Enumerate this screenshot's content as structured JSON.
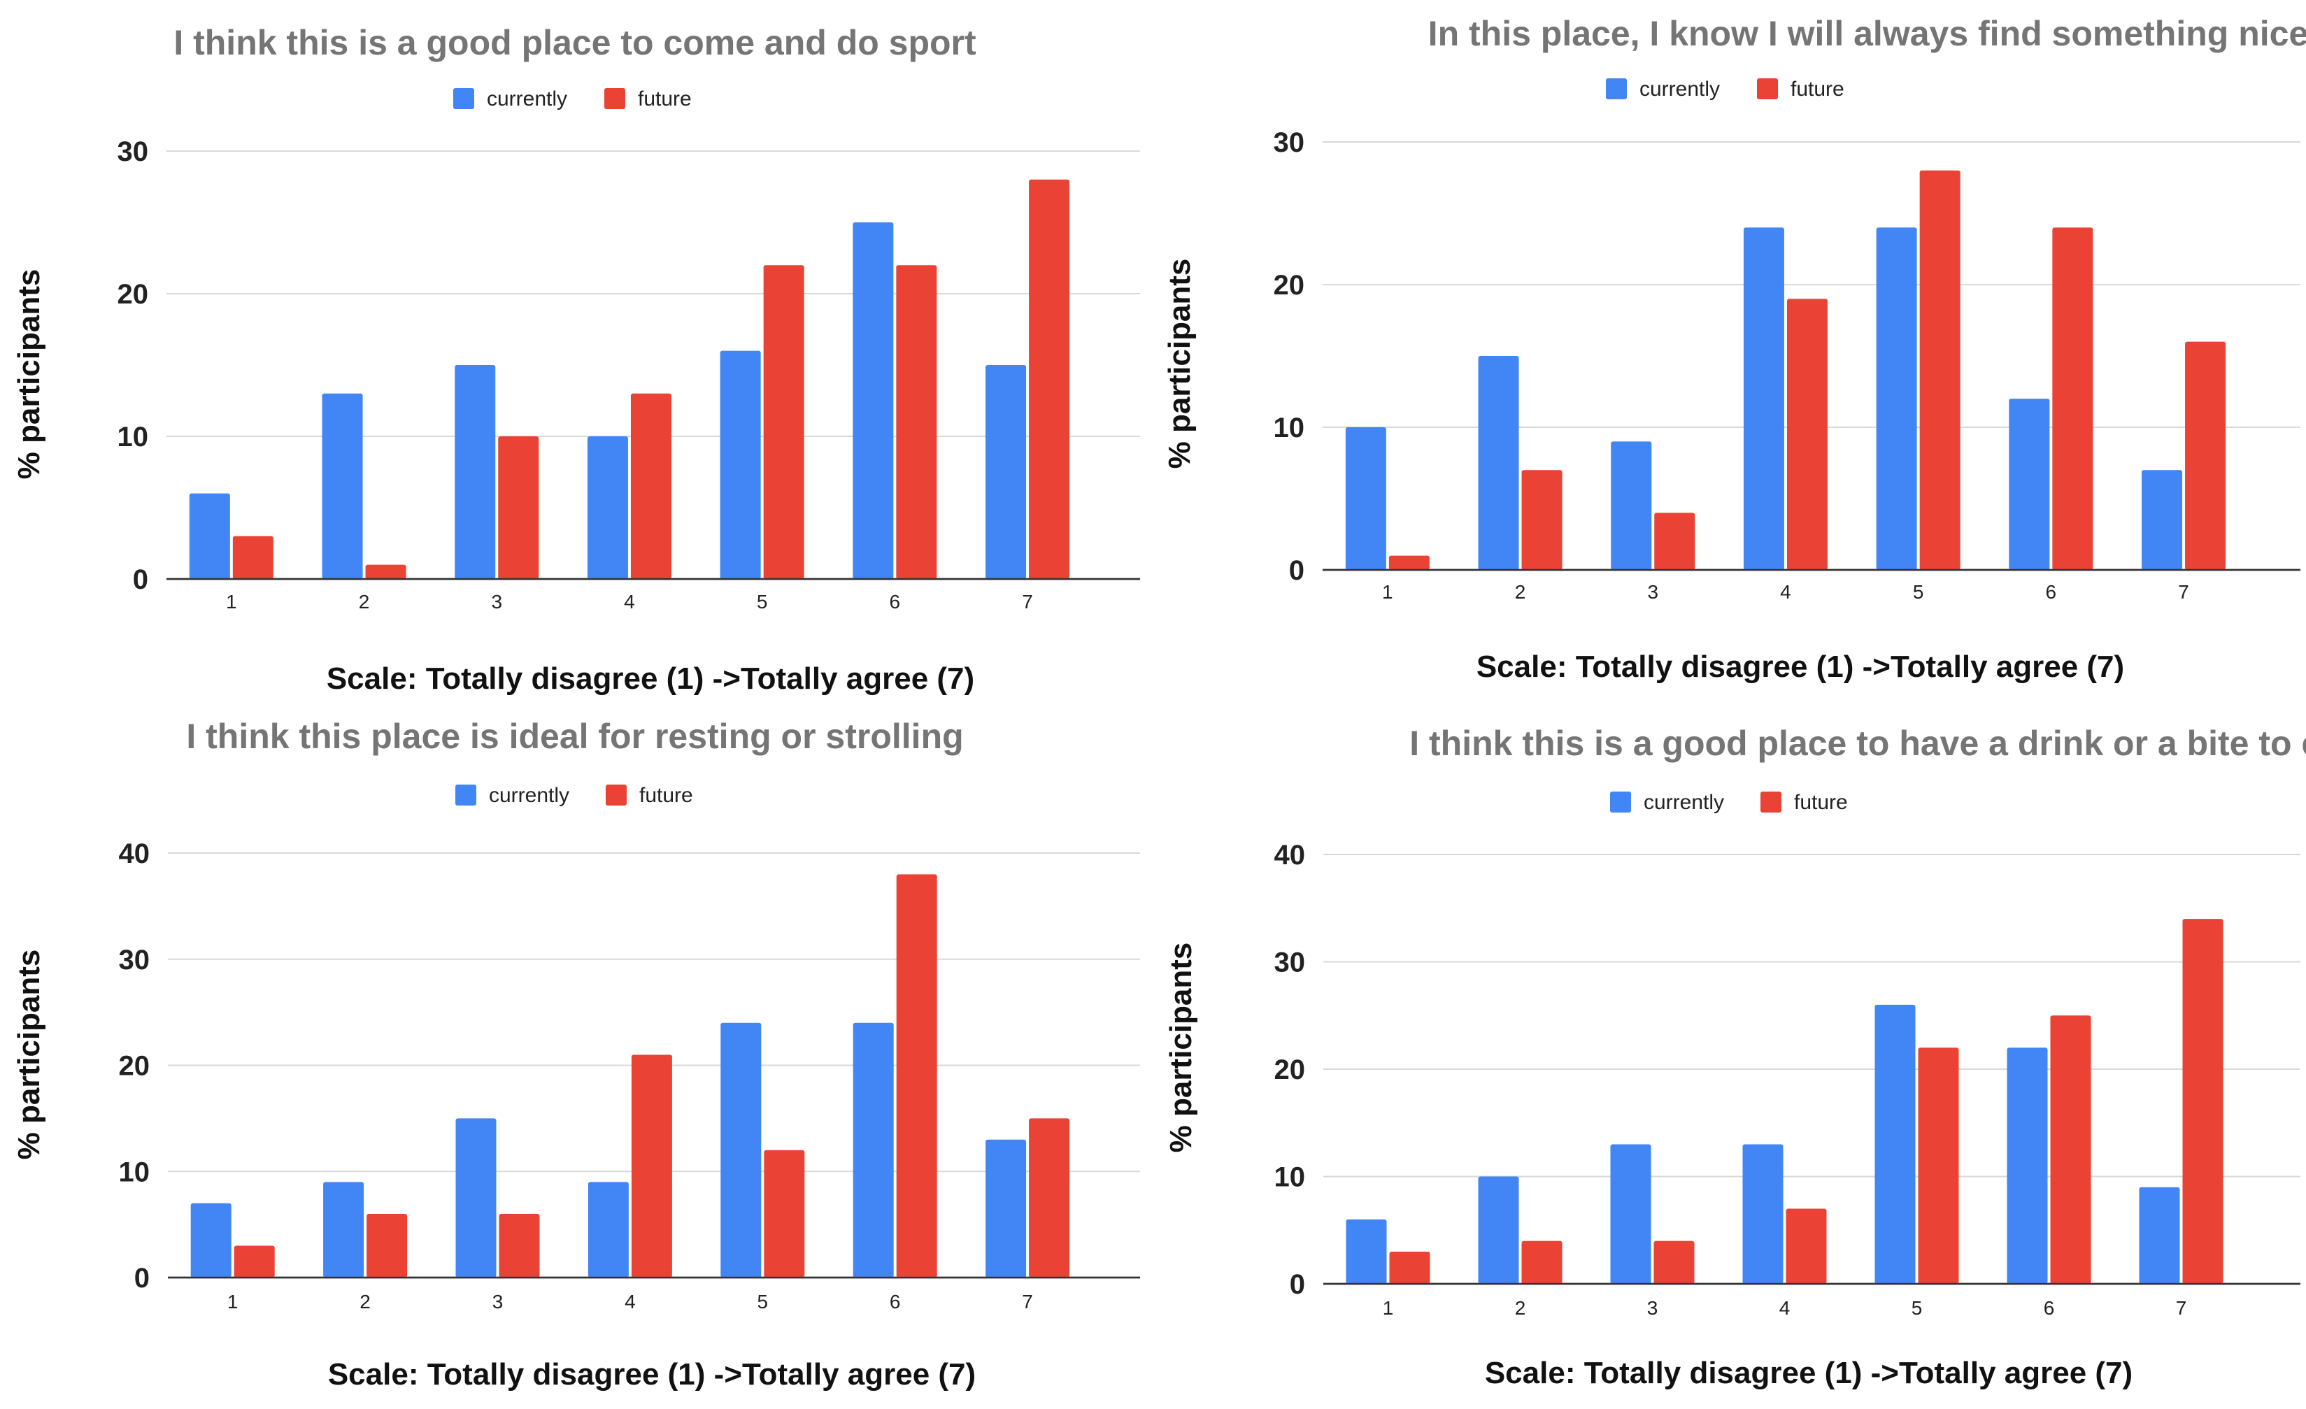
{
  "colors": {
    "currently": "#4285f4",
    "future": "#ea4335"
  },
  "chart_data": [
    {
      "type": "bar",
      "title": "I think this is a good place to come and do sport",
      "xlabel": "Scale: Totally disagree (1) ->Totally agree (7)",
      "ylabel": "% participants",
      "categories": [
        "1",
        "2",
        "3",
        "4",
        "5",
        "6",
        "7"
      ],
      "yticks": [
        "0",
        "10",
        "20",
        "30"
      ],
      "ylim": [
        0,
        30
      ],
      "legend_position": "top",
      "series": [
        {
          "name": "currently",
          "values": [
            6,
            13,
            15,
            10,
            16,
            25,
            15
          ]
        },
        {
          "name": "future",
          "values": [
            3,
            1,
            10,
            13,
            22,
            22,
            28
          ]
        }
      ]
    },
    {
      "type": "bar",
      "title": "In this place, I know I will always find something nice to do",
      "xlabel": "Scale: Totally disagree (1) ->Totally agree (7)",
      "ylabel": "% participants",
      "categories": [
        "1",
        "2",
        "3",
        "4",
        "5",
        "6",
        "7"
      ],
      "yticks": [
        "0",
        "10",
        "20",
        "30"
      ],
      "ylim": [
        0,
        30
      ],
      "legend_position": "top",
      "series": [
        {
          "name": "currently",
          "values": [
            10,
            15,
            9,
            24,
            24,
            12,
            7
          ]
        },
        {
          "name": "future",
          "values": [
            1,
            7,
            4,
            19,
            28,
            24,
            16
          ]
        }
      ]
    },
    {
      "type": "bar",
      "title": "I think this place is ideal for resting or strolling",
      "xlabel": "Scale: Totally disagree (1) ->Totally agree (7)",
      "ylabel": "% participants",
      "categories": [
        "1",
        "2",
        "3",
        "4",
        "5",
        "6",
        "7"
      ],
      "yticks": [
        "0",
        "10",
        "20",
        "30",
        "40"
      ],
      "ylim": [
        0,
        40
      ],
      "legend_position": "top",
      "series": [
        {
          "name": "currently",
          "values": [
            7,
            9,
            15,
            9,
            24,
            24,
            13
          ]
        },
        {
          "name": "future",
          "values": [
            3,
            6,
            6,
            21,
            12,
            38,
            15
          ]
        }
      ]
    },
    {
      "type": "bar",
      "title": "I think this is a good place to have a drink or a bite to eat",
      "xlabel": "Scale: Totally disagree (1) ->Totally agree (7)",
      "ylabel": "% participants",
      "categories": [
        "1",
        "2",
        "3",
        "4",
        "5",
        "6",
        "7"
      ],
      "yticks": [
        "0",
        "10",
        "20",
        "30",
        "40"
      ],
      "ylim": [
        0,
        40
      ],
      "legend_position": "top",
      "series": [
        {
          "name": "currently",
          "values": [
            6,
            10,
            13,
            13,
            26,
            22,
            9
          ]
        },
        {
          "name": "future",
          "values": [
            3,
            4,
            4,
            7,
            22,
            25,
            34
          ]
        }
      ]
    }
  ]
}
